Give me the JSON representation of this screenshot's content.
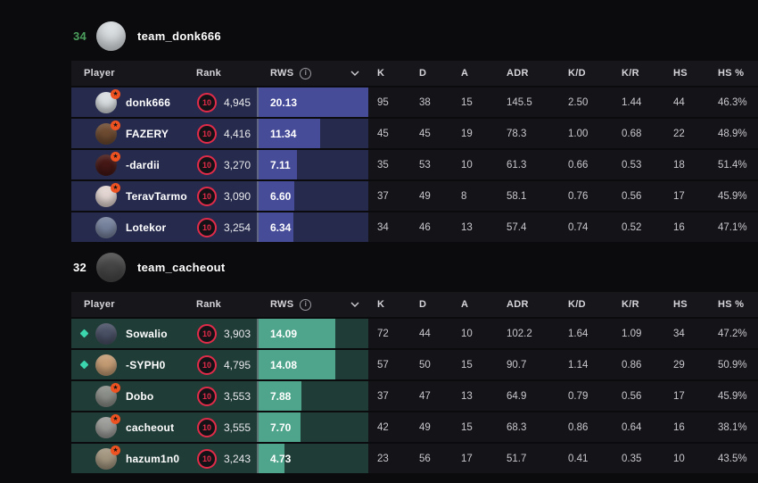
{
  "table": {
    "rws_max": 20.13,
    "columns": {
      "player": "Player",
      "rank": "Rank",
      "rws": "RWS",
      "k": "K",
      "d": "D",
      "a": "A",
      "adr": "ADR",
      "kd": "K/D",
      "kr": "K/R",
      "hs": "HS",
      "hs_pct": "HS %"
    },
    "icons": {
      "info": "i",
      "star": "★",
      "chevron": "chevron-down"
    }
  },
  "teams": [
    {
      "score": "34",
      "score_color": "#4c9f5c",
      "name": "team_donk666",
      "avatar_color": "#dde2e5",
      "colors": {
        "row_bg": "#262b4e",
        "bar_fill": "#474c99"
      },
      "players": [
        {
          "name": "donk666",
          "diamond": false,
          "star": true,
          "avatar_color": "#d9dee1",
          "rank_level": "10",
          "elo": "4,945",
          "rws": "20.13",
          "k": "95",
          "d": "38",
          "a": "15",
          "adr": "145.5",
          "kd": "2.50",
          "kr": "1.44",
          "hs": "44",
          "hs_pct": "46.3%"
        },
        {
          "name": "FAZERY",
          "diamond": false,
          "star": true,
          "avatar_color": "#6e4b31",
          "rank_level": "10",
          "elo": "4,416",
          "rws": "11.34",
          "k": "45",
          "d": "45",
          "a": "19",
          "adr": "78.3",
          "kd": "1.00",
          "kr": "0.68",
          "hs": "22",
          "hs_pct": "48.9%"
        },
        {
          "name": "-dardii",
          "diamond": false,
          "star": true,
          "avatar_color": "#451715",
          "rank_level": "10",
          "elo": "3,270",
          "rws": "7.11",
          "k": "35",
          "d": "53",
          "a": "10",
          "adr": "61.3",
          "kd": "0.66",
          "kr": "0.53",
          "hs": "18",
          "hs_pct": "51.4%"
        },
        {
          "name": "TeravTarmo",
          "diamond": false,
          "star": true,
          "avatar_color": "#e3d6d2",
          "rank_level": "10",
          "elo": "3,090",
          "rws": "6.60",
          "k": "37",
          "d": "49",
          "a": "8",
          "adr": "58.1",
          "kd": "0.76",
          "kr": "0.56",
          "hs": "17",
          "hs_pct": "45.9%"
        },
        {
          "name": "Lotekor",
          "diamond": false,
          "star": false,
          "avatar_color": "#76829d",
          "rank_level": "10",
          "elo": "3,254",
          "rws": "6.34",
          "k": "34",
          "d": "46",
          "a": "13",
          "adr": "57.4",
          "kd": "0.74",
          "kr": "0.52",
          "hs": "16",
          "hs_pct": "47.1%"
        }
      ]
    },
    {
      "score": "32",
      "score_color": "#ffffff",
      "name": "team_cacheout",
      "avatar_color": "#474747",
      "colors": {
        "row_bg": "#203c37",
        "bar_fill": "#4fa58b"
      },
      "players": [
        {
          "name": "Sowalio",
          "diamond": true,
          "star": false,
          "avatar_color": "#4a5166",
          "rank_level": "10",
          "elo": "3,903",
          "rws": "14.09",
          "k": "72",
          "d": "44",
          "a": "10",
          "adr": "102.2",
          "kd": "1.64",
          "kr": "1.09",
          "hs": "34",
          "hs_pct": "47.2%"
        },
        {
          "name": "-SYPH0",
          "diamond": true,
          "star": false,
          "avatar_color": "#c49c74",
          "rank_level": "10",
          "elo": "4,795",
          "rws": "14.08",
          "k": "57",
          "d": "50",
          "a": "15",
          "adr": "90.7",
          "kd": "1.14",
          "kr": "0.86",
          "hs": "29",
          "hs_pct": "50.9%"
        },
        {
          "name": "Dobo",
          "diamond": false,
          "star": true,
          "avatar_color": "#8b8e89",
          "rank_level": "10",
          "elo": "3,553",
          "rws": "7.88",
          "k": "37",
          "d": "47",
          "a": "13",
          "adr": "64.9",
          "kd": "0.79",
          "kr": "0.56",
          "hs": "17",
          "hs_pct": "45.9%"
        },
        {
          "name": "cacheout",
          "diamond": false,
          "star": true,
          "avatar_color": "#9b9b98",
          "rank_level": "10",
          "elo": "3,555",
          "rws": "7.70",
          "k": "42",
          "d": "49",
          "a": "15",
          "adr": "68.3",
          "kd": "0.86",
          "kr": "0.64",
          "hs": "16",
          "hs_pct": "38.1%"
        },
        {
          "name": "hazum1n0",
          "diamond": false,
          "star": true,
          "avatar_color": "#a3967f",
          "rank_level": "10",
          "elo": "3,243",
          "rws": "4.73",
          "k": "23",
          "d": "56",
          "a": "17",
          "adr": "51.7",
          "kd": "0.41",
          "kr": "0.35",
          "hs": "10",
          "hs_pct": "43.5%"
        }
      ]
    }
  ]
}
